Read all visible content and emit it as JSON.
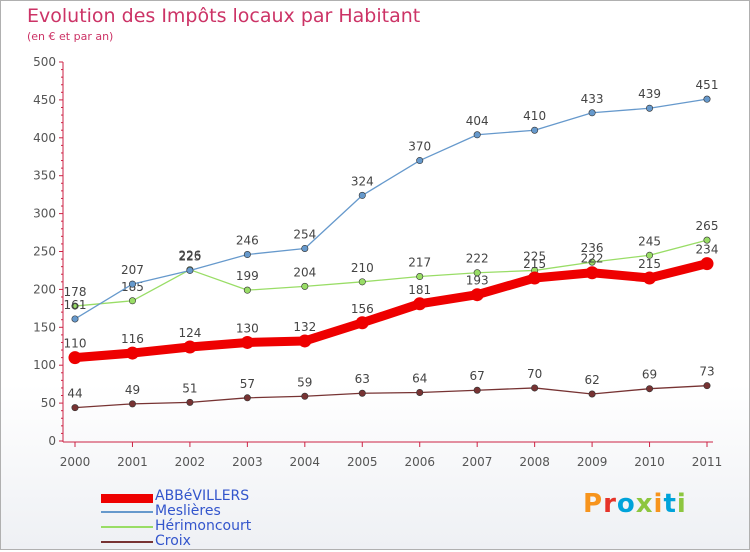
{
  "title": "Evolution des Impôts locaux par Habitant",
  "subtitle": "(en € et par an)",
  "logo": {
    "text": "Proxiti",
    "colors": [
      "#f7941d",
      "#e63329",
      "#00a3da",
      "#8dc63f",
      "#f7941d",
      "#00a3da",
      "#8dc63f"
    ]
  },
  "chart_data": {
    "type": "line",
    "x": [
      2000,
      2001,
      2002,
      2003,
      2004,
      2005,
      2006,
      2007,
      2008,
      2009,
      2010,
      2011
    ],
    "ylim": [
      0,
      500
    ],
    "yticks": [
      0,
      50,
      100,
      150,
      200,
      250,
      300,
      350,
      400,
      450,
      500
    ],
    "grid": false,
    "legend_position": "bottom-left",
    "series": [
      {
        "name": "ABBéVILLERS",
        "color": "#ee0000",
        "values": [
          110,
          116,
          124,
          130,
          132,
          156,
          181,
          193,
          215,
          222,
          215,
          234
        ]
      },
      {
        "name": "Meslières",
        "color": "#6699cc",
        "values": [
          161,
          207,
          225,
          246,
          254,
          324,
          370,
          404,
          410,
          433,
          439,
          451
        ]
      },
      {
        "name": "Hérimoncourt",
        "color": "#99dd66",
        "values": [
          178,
          185,
          226,
          199,
          204,
          210,
          217,
          222,
          225,
          236,
          245,
          265
        ]
      },
      {
        "name": "Croix",
        "color": "#773333",
        "values": [
          44,
          49,
          51,
          57,
          59,
          63,
          64,
          67,
          70,
          62,
          69,
          73
        ]
      }
    ]
  }
}
